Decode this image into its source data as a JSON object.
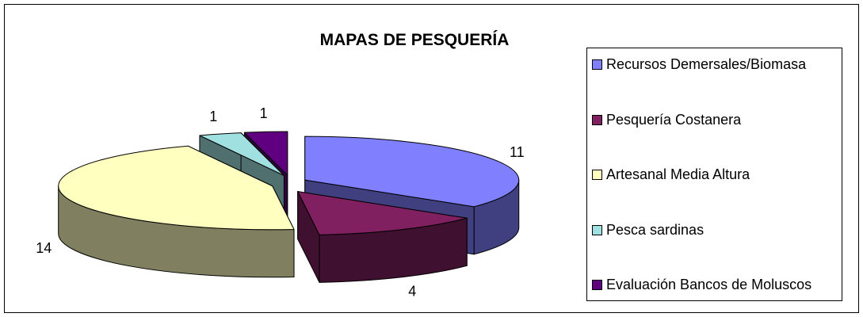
{
  "chart_data": {
    "type": "pie",
    "title": "MAPAS DE PESQUERÍA",
    "categories": [
      "Recursos Demersales/Biomasa",
      "Pesquería Costanera",
      "Artesanal Media Altura",
      "Pesca sardinas",
      "Evaluación Bancos de Moluscos"
    ],
    "values": [
      11,
      4,
      14,
      1,
      1
    ],
    "colors": [
      "#8080ff",
      "#802060",
      "#ffffc0",
      "#a0e0e0",
      "#600080"
    ]
  }
}
